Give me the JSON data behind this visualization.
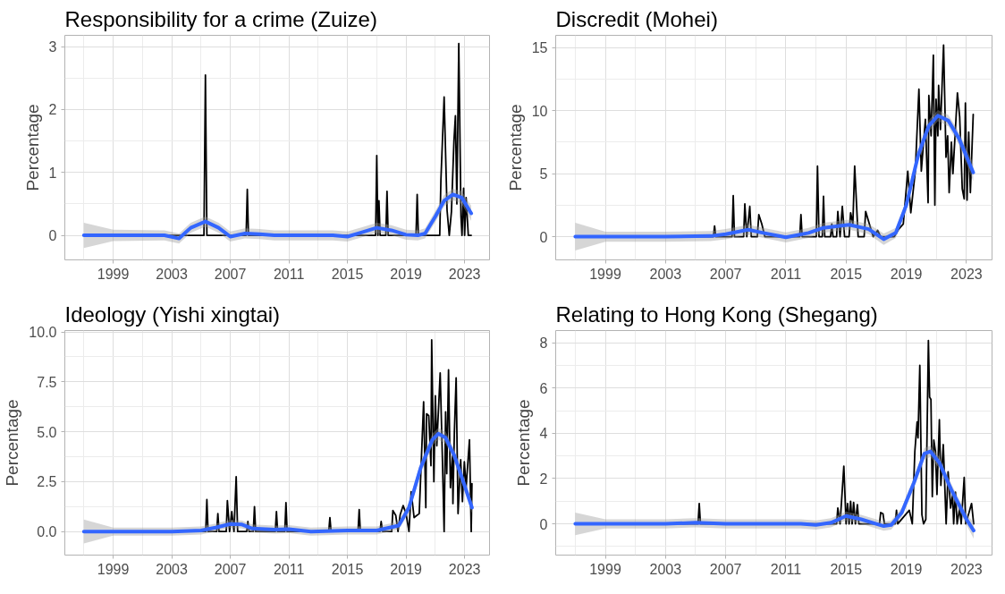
{
  "chart_data": [
    {
      "type": "line",
      "title": "Responsibility for a crime (Zuize)",
      "ylabel": "Percentage",
      "grid": true,
      "xlim": [
        1995.7,
        2024.7
      ],
      "ylim": [
        -0.39,
        3.18
      ],
      "xticks": [
        {
          "value": 1997,
          "label": null
        },
        1999,
        {
          "value": 2001,
          "label": null
        },
        2003,
        {
          "value": 2005,
          "label": null
        },
        2007,
        {
          "value": 2009,
          "label": null
        },
        2011,
        {
          "value": 2013,
          "label": null
        },
        2015,
        {
          "value": 2017,
          "label": null
        },
        2019,
        {
          "value": 2021,
          "label": null
        },
        2023
      ],
      "yticks": [
        0,
        {
          "value": 0.5,
          "label": null
        },
        1,
        {
          "value": 1.5,
          "label": null
        },
        2,
        {
          "value": 2.5,
          "label": null
        },
        3
      ],
      "series": [
        {
          "color": "#000000",
          "x": [
            1997,
            2005.2,
            2005.3,
            2005.4,
            2008.08,
            2008.16,
            2008.24,
            2016.92,
            2017.0,
            2017.08,
            2017.15,
            2017.23,
            2017.62,
            2017.7,
            2017.78,
            2019.68,
            2019.76,
            2019.84,
            2021.3,
            2021.38,
            2021.6,
            2021.8,
            2021.95,
            2022.1,
            2022.27,
            2022.37,
            2022.47,
            2022.6,
            2022.75,
            2022.82,
            2022.93,
            2023.0,
            2023.1,
            2023.25,
            2023.45
          ],
          "values": [
            0,
            0,
            2.55,
            0,
            0,
            0.73,
            0,
            0,
            1.27,
            0,
            0.55,
            0,
            0,
            0.7,
            0,
            0,
            0.65,
            0,
            0,
            0.88,
            2.2,
            0.4,
            0,
            0.38,
            1.5,
            1.9,
            0.5,
            3.05,
            0.3,
            0,
            0.75,
            0,
            0.6,
            0,
            0
          ]
        },
        {
          "color": "#3366ff",
          "x": [
            1997,
            1999,
            2002.5,
            2003.5,
            2004.3,
            2005.3,
            2006.2,
            2007,
            2008,
            2009,
            2010,
            2012,
            2014,
            2015,
            2016,
            2017,
            2018,
            2019,
            2019.8,
            2020.3,
            2021,
            2021.6,
            2022.2,
            2022.8,
            2023.45
          ],
          "values": [
            0,
            0,
            0,
            -0.05,
            0.12,
            0.22,
            0.12,
            -0.02,
            0.03,
            0.02,
            0,
            0,
            0,
            -0.02,
            0.05,
            0.12,
            0.08,
            0.01,
            0,
            0.03,
            0.3,
            0.55,
            0.65,
            0.6,
            0.35
          ],
          "lower": [
            -0.2,
            -0.09,
            -0.08,
            -0.13,
            0.04,
            0.14,
            0.04,
            -0.1,
            -0.05,
            -0.06,
            -0.08,
            -0.08,
            -0.08,
            -0.1,
            -0.03,
            0.04,
            0,
            -0.07,
            -0.08,
            -0.05,
            0.21,
            0.46,
            0.56,
            0.5,
            0.23
          ],
          "upper": [
            0.2,
            0.09,
            0.08,
            0.03,
            0.2,
            0.3,
            0.2,
            0.06,
            0.11,
            0.1,
            0.08,
            0.08,
            0.08,
            0.06,
            0.13,
            0.2,
            0.16,
            0.09,
            0.08,
            0.11,
            0.39,
            0.64,
            0.74,
            0.7,
            0.47
          ]
        }
      ]
    },
    {
      "type": "line",
      "title": "Discredit (Mohei)",
      "ylabel": "Percentage",
      "grid": true,
      "xlim": [
        1995.7,
        2024.7
      ],
      "ylim": [
        -1.84,
        15.97
      ],
      "xticks": [
        {
          "value": 1997,
          "label": null
        },
        1999,
        {
          "value": 2001,
          "label": null
        },
        2003,
        {
          "value": 2005,
          "label": null
        },
        2007,
        {
          "value": 2009,
          "label": null
        },
        2011,
        {
          "value": 2013,
          "label": null
        },
        2015,
        {
          "value": 2017,
          "label": null
        },
        2019,
        {
          "value": 2021,
          "label": null
        },
        2023
      ],
      "yticks": [
        0,
        {
          "value": 2.5,
          "label": null
        },
        5,
        {
          "value": 7.5,
          "label": null
        },
        10,
        {
          "value": 12.5,
          "label": null
        },
        15
      ],
      "series": [
        {
          "color": "#000000",
          "x": [
            1997,
            2006.18,
            2006.26,
            2006.34,
            2007.42,
            2007.5,
            2007.58,
            2008.19,
            2008.27,
            2008.4,
            2008.6,
            2008.7,
            2009.1,
            2009.2,
            2009.4,
            2009.6,
            2011.92,
            2012.0,
            2012.08,
            2013.02,
            2013.1,
            2013.2,
            2013.42,
            2013.5,
            2013.58,
            2013.97,
            2014.05,
            2014.13,
            2014.37,
            2014.45,
            2014.6,
            2014.75,
            2014.9,
            2015.2,
            2015.3,
            2015.45,
            2015.57,
            2015.8,
            2016.2,
            2016.3,
            2016.55,
            2016.8,
            2017.1,
            2017.3,
            2018.2,
            2018.5,
            2018.8,
            2019.1,
            2019.3,
            2019.6,
            2019.84,
            2020.0,
            2020.27,
            2020.45,
            2020.5,
            2020.65,
            2020.8,
            2020.9,
            2020.98,
            2021.1,
            2021.15,
            2021.27,
            2021.48,
            2021.64,
            2021.75,
            2021.85,
            2022.0,
            2022.1,
            2022.4,
            2022.55,
            2022.72,
            2022.85,
            2022.93,
            2023.04,
            2023.15,
            2023.26,
            2023.45
          ],
          "values": [
            0,
            0,
            0.85,
            0,
            0,
            3.25,
            0,
            0,
            2.6,
            0,
            2.4,
            0,
            0,
            1.75,
            1.0,
            0,
            0,
            1.75,
            0,
            0,
            5.6,
            0,
            0,
            3.2,
            0,
            0,
            1.0,
            0,
            0,
            2.0,
            0,
            2.4,
            0,
            0,
            1.9,
            1.0,
            5.6,
            0,
            0,
            2.0,
            1.0,
            0,
            0.5,
            0,
            0,
            0.6,
            1.0,
            5.2,
            1.9,
            5.2,
            11.7,
            5.2,
            9.3,
            2.7,
            11.2,
            8.0,
            14.4,
            2.5,
            10.9,
            8.0,
            12.0,
            8.5,
            15.2,
            6.3,
            8.0,
            3.5,
            7.5,
            5.0,
            11.4,
            9.5,
            3.8,
            3.0,
            10.6,
            2.9,
            8.3,
            3.5,
            9.7
          ]
        },
        {
          "color": "#3366ff",
          "x": [
            1997,
            1999,
            2003,
            2006,
            2007,
            2008.5,
            2009.5,
            2011,
            2012.5,
            2013.5,
            2015.2,
            2016.5,
            2017.5,
            2018.3,
            2019,
            2019.8,
            2020.5,
            2021.1,
            2021.8,
            2022.5,
            2023.45
          ],
          "values": [
            0,
            0,
            0,
            0.05,
            0.2,
            0.55,
            0.3,
            -0.05,
            0.3,
            0.7,
            0.95,
            0.6,
            -0.2,
            0.3,
            2.5,
            6.5,
            8.8,
            9.6,
            9.2,
            7.8,
            5.1
          ],
          "lower": [
            -1.1,
            -0.4,
            -0.4,
            -0.35,
            -0.2,
            0.15,
            -0.1,
            -0.45,
            -0.1,
            0.3,
            0.55,
            0.2,
            -0.65,
            -0.1,
            2.1,
            6.05,
            8.35,
            9.15,
            8.75,
            7.3,
            4.4
          ],
          "upper": [
            1.1,
            0.4,
            0.4,
            0.45,
            0.6,
            0.95,
            0.7,
            0.35,
            0.7,
            1.1,
            1.35,
            1.0,
            0.25,
            0.7,
            2.9,
            6.95,
            9.25,
            10.05,
            9.65,
            8.3,
            5.8
          ]
        }
      ]
    },
    {
      "type": "line",
      "title": "Ideology (Yishi xingtai)",
      "ylabel": "Percentage",
      "grid": true,
      "xlim": [
        1995.7,
        2024.7
      ],
      "ylim": [
        -1.18,
        10.07
      ],
      "xticks": [
        {
          "value": 1997,
          "label": null
        },
        1999,
        {
          "value": 2001,
          "label": null
        },
        2003,
        {
          "value": 2005,
          "label": null
        },
        2007,
        {
          "value": 2009,
          "label": null
        },
        2011,
        {
          "value": 2013,
          "label": null
        },
        2015,
        {
          "value": 2017,
          "label": null
        },
        2019,
        {
          "value": 2021,
          "label": null
        },
        2023
      ],
      "yticks": [
        {
          "value": 0,
          "label": "0.0"
        },
        {
          "value": 1.25,
          "label": null
        },
        {
          "value": 2.5,
          "label": "2.5"
        },
        {
          "value": 3.75,
          "label": null
        },
        {
          "value": 5,
          "label": "5.0"
        },
        {
          "value": 6.25,
          "label": null
        },
        {
          "value": 7.5,
          "label": "7.5"
        },
        {
          "value": 8.75,
          "label": null
        },
        {
          "value": 10,
          "label": "10.0"
        }
      ],
      "series": [
        {
          "color": "#000000",
          "x": [
            1997,
            2005.32,
            2005.4,
            2005.48,
            2006.07,
            2006.15,
            2006.23,
            2006.72,
            2006.8,
            2006.95,
            2007.1,
            2007.25,
            2007.4,
            2007.5,
            2008.12,
            2008.2,
            2008.28,
            2008.57,
            2008.65,
            2008.73,
            2010.07,
            2010.15,
            2010.23,
            2010.72,
            2010.8,
            2010.88,
            2013.72,
            2013.8,
            2013.88,
            2015.72,
            2015.8,
            2015.88,
            2017.22,
            2017.3,
            2017.4,
            2018.02,
            2018.1,
            2018.3,
            2018.45,
            2018.6,
            2018.8,
            2019.0,
            2019.2,
            2019.35,
            2019.55,
            2019.9,
            2020.2,
            2020.35,
            2020.4,
            2020.55,
            2020.7,
            2020.75,
            2020.9,
            2021.0,
            2021.1,
            2021.33,
            2021.47,
            2021.6,
            2021.7,
            2021.78,
            2021.9,
            2022.03,
            2022.17,
            2022.2,
            2022.3,
            2022.42,
            2022.55,
            2022.73,
            2022.85,
            2022.98,
            2023.1,
            2023.33,
            2023.45,
            2023.5
          ],
          "values": [
            0,
            0,
            1.6,
            0,
            0,
            0.9,
            0,
            0,
            1.55,
            0,
            1.0,
            0,
            2.75,
            0,
            0,
            0.5,
            0,
            0,
            1.25,
            0,
            0,
            1.0,
            0,
            0,
            1.45,
            0,
            0,
            0.7,
            0,
            0,
            1.1,
            0,
            0,
            0.5,
            0,
            0,
            1.05,
            0.8,
            0,
            0.85,
            1.3,
            0.9,
            0,
            2.0,
            0.7,
            0.9,
            6.5,
            1.2,
            5.9,
            5.8,
            3.3,
            9.6,
            2.5,
            6.8,
            4.3,
            7.95,
            4.0,
            0,
            6.0,
            2.9,
            8.1,
            2.2,
            3.8,
            1.4,
            5.0,
            7.7,
            0.9,
            3.6,
            1.5,
            3.5,
            2.2,
            4.6,
            0,
            2.4
          ]
        },
        {
          "color": "#3366ff",
          "x": [
            1997,
            1999,
            2003,
            2005,
            2006,
            2007,
            2007.8,
            2008.5,
            2010,
            2011,
            2012.5,
            2015,
            2017,
            2018.5,
            2019.2,
            2020,
            2020.8,
            2021.2,
            2021.7,
            2022.3,
            2023,
            2023.5
          ],
          "values": [
            0,
            0,
            0,
            0.05,
            0.2,
            0.38,
            0.35,
            0.15,
            0.1,
            0.12,
            0,
            0.05,
            0.05,
            0.3,
            1.2,
            3.2,
            4.6,
            4.9,
            4.7,
            3.8,
            2.3,
            1.2
          ],
          "lower": [
            -0.6,
            -0.2,
            -0.2,
            -0.15,
            0,
            0.18,
            0.15,
            -0.05,
            -0.1,
            -0.08,
            -0.2,
            -0.15,
            -0.15,
            0.1,
            0.95,
            2.9,
            4.3,
            4.6,
            4.4,
            3.5,
            2.0,
            0.9
          ],
          "upper": [
            0.6,
            0.2,
            0.2,
            0.25,
            0.4,
            0.58,
            0.55,
            0.35,
            0.3,
            0.32,
            0.2,
            0.25,
            0.25,
            0.5,
            1.45,
            3.5,
            4.9,
            5.2,
            5.0,
            4.1,
            2.6,
            1.5
          ]
        }
      ]
    },
    {
      "type": "line",
      "title": "Relating to Hong Kong (Shegang)",
      "ylabel": "Percentage",
      "grid": true,
      "xlim": [
        1995.7,
        2024.7
      ],
      "ylim": [
        -1.38,
        8.54
      ],
      "xticks": [
        {
          "value": 1997,
          "label": null
        },
        1999,
        {
          "value": 2001,
          "label": null
        },
        2003,
        {
          "value": 2005,
          "label": null
        },
        2007,
        {
          "value": 2009,
          "label": null
        },
        2011,
        {
          "value": 2013,
          "label": null
        },
        2015,
        {
          "value": 2017,
          "label": null
        },
        2019,
        {
          "value": 2021,
          "label": null
        },
        2023
      ],
      "yticks": [
        {
          "value": -1,
          "label": null
        },
        0,
        {
          "value": 1,
          "label": null
        },
        2,
        {
          "value": 3,
          "label": null
        },
        4,
        {
          "value": 5,
          "label": null
        },
        6,
        {
          "value": 7,
          "label": null
        },
        8
      ],
      "series": [
        {
          "color": "#000000",
          "x": [
            1997,
            2005.16,
            2005.24,
            2005.32,
            2014.37,
            2014.45,
            2014.6,
            2014.85,
            2015.0,
            2015.1,
            2015.2,
            2015.3,
            2015.4,
            2015.5,
            2015.62,
            2015.75,
            2015.85,
            2017.22,
            2017.3,
            2017.45,
            2017.55,
            2018.27,
            2018.35,
            2018.43,
            2019.2,
            2019.4,
            2019.57,
            2019.72,
            2019.78,
            2019.9,
            2020.04,
            2020.15,
            2020.3,
            2020.47,
            2020.55,
            2020.64,
            2020.73,
            2020.83,
            2020.94,
            2021.04,
            2021.2,
            2021.3,
            2021.46,
            2021.65,
            2021.78,
            2021.95,
            2022.08,
            2022.15,
            2022.27,
            2022.38,
            2022.55,
            2022.65,
            2022.85,
            2022.95,
            2023.17,
            2023.34,
            2023.48
          ],
          "values": [
            0,
            0,
            0.9,
            0,
            0,
            0.7,
            0,
            2.55,
            0,
            0.9,
            0,
            1.0,
            0,
            0.95,
            0,
            0.85,
            0,
            0,
            0.5,
            0.45,
            0,
            0,
            0.6,
            0,
            0.6,
            0,
            3.2,
            4.5,
            3.8,
            7.0,
            0.4,
            0,
            0.2,
            8.1,
            5.6,
            5.5,
            1.2,
            3.7,
            3.2,
            1.3,
            4.6,
            1.7,
            3.5,
            0,
            2.3,
            0.7,
            1.3,
            0,
            1.4,
            0,
            0.7,
            0,
            2.05,
            0,
            0.5,
            0.9,
            0
          ]
        },
        {
          "color": "#3366ff",
          "x": [
            1997,
            1999,
            2003,
            2005,
            2007,
            2012,
            2013,
            2014,
            2015,
            2016,
            2017,
            2017.5,
            2018,
            2018.7,
            2019.5,
            2020.2,
            2020.6,
            2021.2,
            2022,
            2023,
            2023.48
          ],
          "values": [
            0,
            0,
            0,
            0.05,
            0,
            0,
            -0.05,
            0.05,
            0.35,
            0.2,
            0,
            -0.1,
            -0.05,
            0.5,
            1.8,
            3.1,
            3.2,
            2.7,
            1.5,
            0.2,
            -0.3
          ],
          "lower": [
            -0.5,
            -0.2,
            -0.2,
            -0.15,
            -0.2,
            -0.2,
            -0.25,
            -0.15,
            0.15,
            0,
            -0.2,
            -0.3,
            -0.25,
            0.3,
            1.55,
            2.85,
            2.95,
            2.45,
            1.25,
            -0.05,
            -0.65
          ],
          "upper": [
            0.5,
            0.2,
            0.2,
            0.25,
            0.2,
            0.2,
            0.15,
            0.25,
            0.55,
            0.4,
            0.2,
            0.1,
            0.15,
            0.7,
            2.05,
            3.35,
            3.45,
            2.95,
            1.75,
            0.45,
            0.05
          ]
        }
      ]
    }
  ]
}
